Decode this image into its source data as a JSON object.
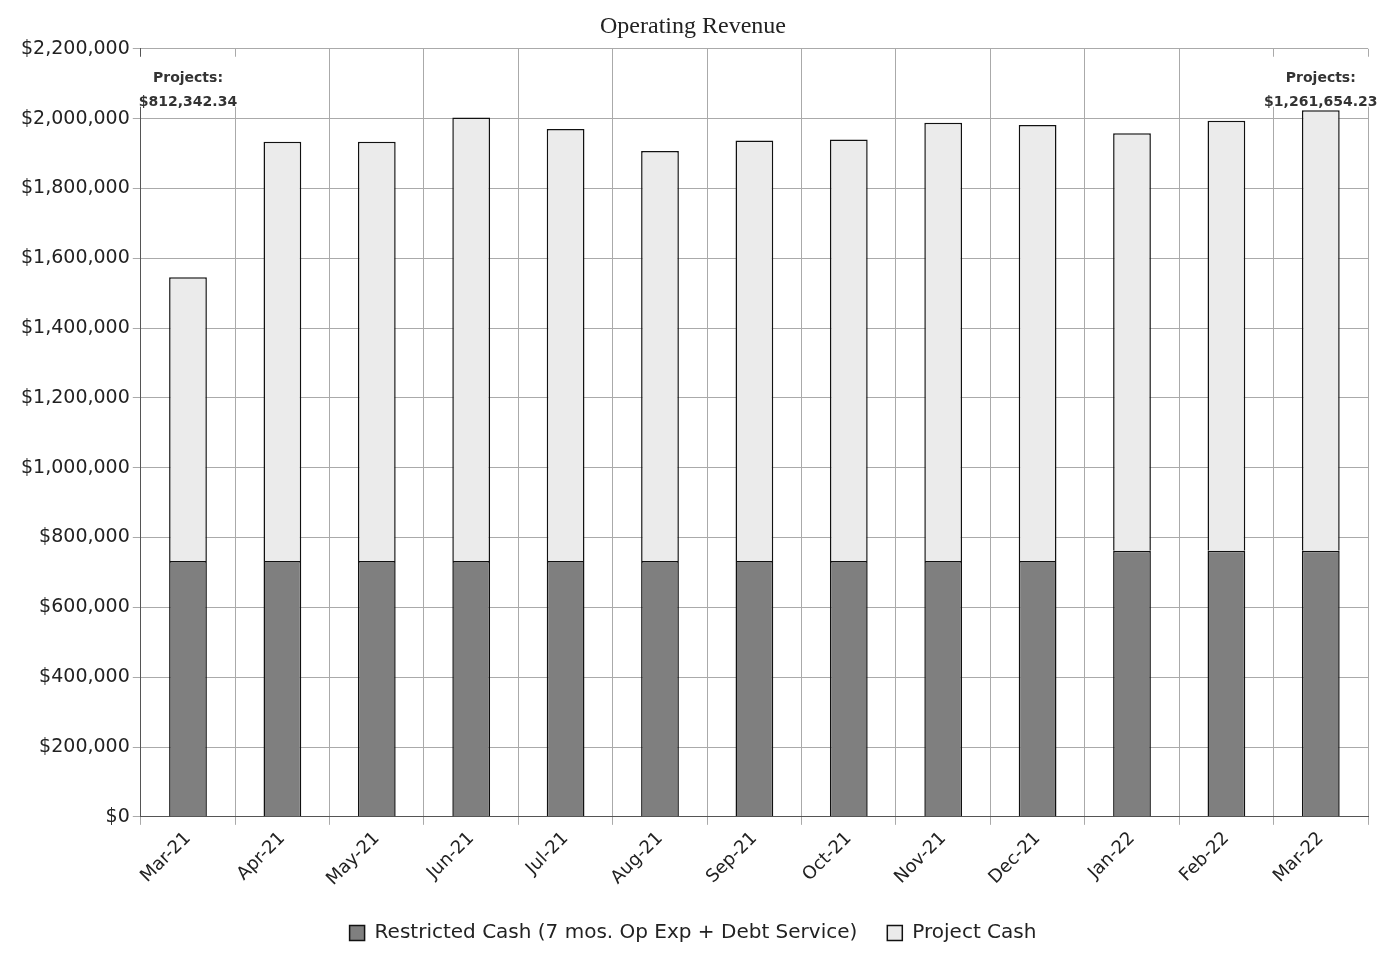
{
  "chart_data": {
    "type": "bar",
    "title": "Operating Revenue",
    "stacked": true,
    "categories": [
      "Mar-21",
      "Apr-21",
      "May-21",
      "Jun-21",
      "Jul-21",
      "Aug-21",
      "Sep-21",
      "Oct-21",
      "Nov-21",
      "Dec-21",
      "Jan-22",
      "Feb-22",
      "Mar-22"
    ],
    "series": [
      {
        "name": "Restricted Cash (7 mos. Op Exp + Debt Service)",
        "color": "#7f7f7f",
        "values": [
          733000,
          733000,
          733000,
          733000,
          733000,
          733000,
          733000,
          733000,
          733000,
          733000,
          762000,
          762000,
          762000
        ]
      },
      {
        "name": "Project Cash",
        "color": "#ebebeb",
        "values": [
          812342.34,
          1201000,
          1201000,
          1270000,
          1237000,
          1174000,
          1204000,
          1207000,
          1255000,
          1249000,
          1196000,
          1232000,
          1261654.23
        ]
      }
    ],
    "ylim": [
      0,
      2200000
    ],
    "yticks": [
      {
        "value": 0,
        "label": "$0"
      },
      {
        "value": 200000,
        "label": "$200,000"
      },
      {
        "value": 400000,
        "label": "$400,000"
      },
      {
        "value": 600000,
        "label": "$600,000"
      },
      {
        "value": 800000,
        "label": "$800,000"
      },
      {
        "value": 1000000,
        "label": "$1,000,000"
      },
      {
        "value": 1200000,
        "label": "$1,200,000"
      },
      {
        "value": 1400000,
        "label": "$1,400,000"
      },
      {
        "value": 1600000,
        "label": "$1,600,000"
      },
      {
        "value": 1800000,
        "label": "$1,800,000"
      },
      {
        "value": 2000000,
        "label": "$2,000,000"
      },
      {
        "value": 2200000,
        "label": "$2,200,000"
      }
    ],
    "grid": true,
    "legend": "bottom",
    "annotations": [
      "Projects:\n$812,342.34",
      "Projects:\n$1,261,654.23"
    ]
  }
}
